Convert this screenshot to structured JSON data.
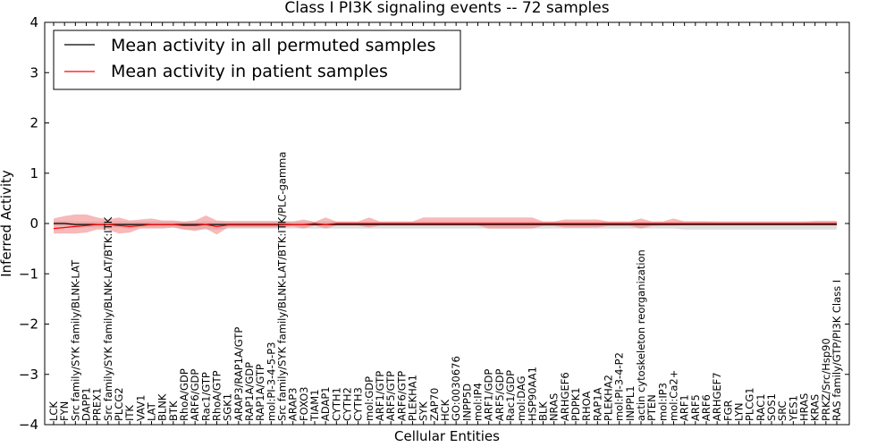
{
  "chart_data": {
    "type": "line",
    "title": "Class I PI3K signaling events -- 72 samples",
    "xlabel": "Cellular Entities",
    "ylabel": "Inferred Activity",
    "ylim": [
      -4,
      4
    ],
    "yticks": [
      -4,
      -3,
      -2,
      -1,
      0,
      1,
      2,
      3,
      4
    ],
    "ytick_labels": [
      "−4",
      "−3",
      "−2",
      "−1",
      "0",
      "1",
      "2",
      "3",
      "4"
    ],
    "legend_position": "upper-left",
    "categories": [
      "LCK",
      "FYN",
      "Src family/SYK family/BLNK-LAT",
      "DAPP1",
      "PREX1",
      "Src family/SYK family/BLNK-LAT/BTK:ITK",
      "PLCG2",
      "ITK",
      "VAV1",
      "LAT",
      "BLNK",
      "BTK",
      "RhoA/GDP",
      "ARF6/GDP",
      "Rac1/GTP",
      "RhoA/GTP",
      "SGK1",
      "ARAP3/RAP1A/GTP",
      "RAP1A/GDP",
      "RAP1A/GTP",
      "mol:PI-3-4-5-P3",
      "Src family/SYK family/BLNK-LAT/BTK:ITK/PLC-gamma",
      "ARAP3",
      "FOXO3",
      "TIAM1",
      "ADAP1",
      "CYTH1",
      "CYTH2",
      "CYTH3",
      "mol:GDP",
      "ARF1/GTP",
      "ARF5/GTP",
      "ARF6/GTP",
      "PLEKHA1",
      "SYK",
      "ZAP70",
      "HCK",
      "GO:0030676",
      "INPP5D",
      "mol:IP4",
      "ARF1/GDP",
      "ARF5/GDP",
      "Rac1/GDP",
      "mol:DAG",
      "HSP90AA1",
      "BLK",
      "NRAS",
      "ARHGEF6",
      "PDPK1",
      "RHOA",
      "RAP1A",
      "PLEKHA2",
      "mol:PI-3-4-P2",
      "INPPL1",
      "actin cytoskeleton reorganization",
      "PTEN",
      "mol:IP3",
      "mol:Ca2+",
      "ARF1",
      "ARF5",
      "ARF6",
      "ARHGEF7",
      "FGR",
      "LYN",
      "PLCG1",
      "RAC1",
      "SOS1",
      "SRC",
      "YES1",
      "HRAS",
      "KRAS",
      "PRKZ/Src/Hsp90",
      "RAS family/GTP/PI3K Class I"
    ],
    "series": [
      {
        "name": "Mean activity in all permuted samples",
        "color": "#000000",
        "band_color": "#c8c8c8",
        "values": [
          0.0,
          0.0,
          -0.02,
          -0.02,
          -0.02,
          -0.02,
          -0.02,
          -0.02,
          -0.02,
          -0.02,
          -0.02,
          -0.02,
          -0.02,
          -0.02,
          -0.02,
          -0.02,
          -0.02,
          -0.02,
          -0.02,
          -0.02,
          -0.02,
          -0.02,
          -0.02,
          -0.02,
          -0.02,
          -0.02,
          -0.02,
          -0.02,
          -0.02,
          -0.02,
          -0.02,
          -0.02,
          -0.02,
          -0.02,
          -0.02,
          -0.02,
          -0.02,
          -0.02,
          -0.02,
          -0.02,
          -0.02,
          -0.02,
          -0.02,
          -0.02,
          -0.02,
          -0.02,
          -0.02,
          -0.02,
          -0.02,
          -0.02,
          -0.02,
          -0.02,
          -0.02,
          -0.02,
          -0.02,
          -0.02,
          -0.02,
          -0.02,
          -0.02,
          -0.02,
          -0.02,
          -0.02,
          -0.02,
          -0.02,
          -0.02,
          -0.02,
          -0.02,
          -0.02,
          -0.02,
          -0.02,
          -0.02,
          -0.02,
          -0.02
        ],
        "band_low": [
          -0.05,
          -0.05,
          -0.08,
          -0.08,
          -0.08,
          -0.08,
          -0.08,
          -0.1,
          -0.08,
          -0.08,
          -0.08,
          -0.08,
          -0.12,
          -0.12,
          -0.12,
          -0.12,
          -0.1,
          -0.1,
          -0.1,
          -0.1,
          -0.1,
          -0.1,
          -0.1,
          -0.1,
          -0.1,
          -0.1,
          -0.1,
          -0.1,
          -0.1,
          -0.1,
          -0.1,
          -0.1,
          -0.1,
          -0.1,
          -0.1,
          -0.1,
          -0.1,
          -0.1,
          -0.1,
          -0.1,
          -0.1,
          -0.1,
          -0.1,
          -0.1,
          -0.1,
          -0.1,
          -0.1,
          -0.1,
          -0.1,
          -0.1,
          -0.1,
          -0.1,
          -0.1,
          -0.1,
          -0.1,
          -0.1,
          -0.1,
          -0.1,
          -0.12,
          -0.12,
          -0.12,
          -0.12,
          -0.12,
          -0.12,
          -0.12,
          -0.12,
          -0.12,
          -0.12,
          -0.12,
          -0.12,
          -0.12,
          -0.12,
          -0.12
        ],
        "band_high": [
          0.05,
          0.05,
          0.04,
          0.04,
          0.04,
          0.04,
          0.04,
          0.04,
          0.04,
          0.04,
          0.04,
          0.04,
          0.04,
          0.04,
          0.04,
          0.04,
          0.04,
          0.04,
          0.04,
          0.04,
          0.04,
          0.04,
          0.04,
          0.04,
          0.04,
          0.04,
          0.04,
          0.04,
          0.04,
          0.04,
          0.04,
          0.04,
          0.04,
          0.04,
          0.04,
          0.04,
          0.04,
          0.04,
          0.04,
          0.04,
          0.04,
          0.04,
          0.04,
          0.04,
          0.04,
          0.04,
          0.04,
          0.04,
          0.04,
          0.04,
          0.04,
          0.04,
          0.04,
          0.04,
          0.04,
          0.04,
          0.04,
          0.04,
          0.05,
          0.05,
          0.05,
          0.05,
          0.05,
          0.05,
          0.05,
          0.05,
          0.05,
          0.05,
          0.05,
          0.05,
          0.05,
          0.05,
          0.05
        ]
      },
      {
        "name": "Mean activity in patient samples",
        "color": "#ff0000",
        "band_color": "#f08080",
        "values": [
          -0.1,
          -0.08,
          -0.06,
          -0.04,
          -0.02,
          -0.02,
          -0.04,
          -0.06,
          -0.04,
          -0.02,
          -0.02,
          -0.02,
          -0.04,
          -0.04,
          -0.02,
          -0.06,
          -0.03,
          -0.03,
          -0.03,
          -0.03,
          -0.03,
          -0.03,
          -0.02,
          -0.02,
          0.0,
          -0.02,
          0.0,
          0.0,
          0.0,
          0.0,
          0.0,
          0.0,
          0.0,
          0.0,
          0.0,
          0.0,
          0.0,
          0.0,
          0.0,
          0.0,
          0.0,
          0.0,
          0.0,
          0.0,
          0.0,
          0.0,
          0.0,
          0.0,
          0.0,
          0.0,
          0.0,
          0.0,
          0.0,
          0.0,
          0.0,
          0.0,
          0.0,
          0.0,
          0.0,
          0.0,
          0.0,
          0.0,
          0.0,
          0.0,
          0.0,
          0.0,
          0.0,
          0.0,
          0.0,
          0.0,
          0.0,
          0.0,
          0.0
        ],
        "band_low": [
          -0.2,
          -0.2,
          -0.2,
          -0.18,
          -0.12,
          -0.12,
          -0.2,
          -0.18,
          -0.1,
          -0.1,
          -0.1,
          -0.08,
          -0.12,
          -0.15,
          -0.1,
          -0.22,
          -0.08,
          -0.08,
          -0.08,
          -0.08,
          -0.08,
          -0.08,
          -0.06,
          -0.1,
          -0.04,
          -0.1,
          -0.04,
          -0.04,
          -0.04,
          -0.08,
          -0.04,
          -0.04,
          -0.04,
          -0.04,
          -0.04,
          -0.04,
          -0.04,
          -0.04,
          -0.04,
          -0.04,
          -0.1,
          -0.1,
          -0.1,
          -0.1,
          -0.1,
          -0.05,
          -0.05,
          -0.08,
          -0.08,
          -0.08,
          -0.08,
          -0.05,
          -0.05,
          -0.05,
          -0.1,
          -0.05,
          -0.04,
          -0.04,
          -0.03,
          -0.03,
          -0.03,
          -0.03,
          -0.03,
          -0.03,
          -0.03,
          -0.03,
          -0.03,
          -0.03,
          -0.03,
          -0.03,
          -0.03,
          -0.03,
          -0.03
        ],
        "band_high": [
          0.1,
          0.15,
          0.18,
          0.18,
          0.12,
          0.08,
          0.12,
          0.06,
          0.08,
          0.1,
          0.06,
          0.06,
          0.04,
          0.06,
          0.16,
          0.06,
          0.05,
          0.05,
          0.05,
          0.05,
          0.05,
          0.05,
          0.04,
          0.08,
          0.03,
          0.12,
          0.04,
          0.04,
          0.04,
          0.12,
          0.04,
          0.04,
          0.04,
          0.04,
          0.12,
          0.12,
          0.12,
          0.12,
          0.12,
          0.12,
          0.12,
          0.12,
          0.12,
          0.12,
          0.12,
          0.04,
          0.04,
          0.08,
          0.08,
          0.08,
          0.08,
          0.04,
          0.04,
          0.04,
          0.1,
          0.04,
          0.04,
          0.1,
          0.04,
          0.04,
          0.04,
          0.03,
          0.03,
          0.03,
          0.03,
          0.03,
          0.03,
          0.03,
          0.03,
          0.03,
          0.05,
          0.05,
          0.05
        ]
      }
    ]
  }
}
